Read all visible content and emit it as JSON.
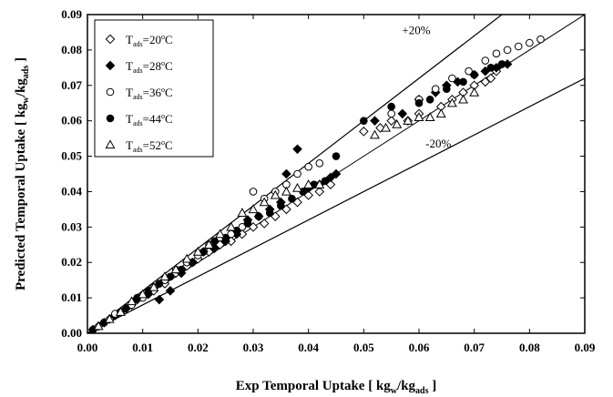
{
  "chart_data": {
    "type": "scatter",
    "xlabel": {
      "main": "Exp Temporal Uptake [ kg",
      "sub1": "w",
      "mid": "/kg",
      "sub2": "ads",
      "end": " ]"
    },
    "ylabel": {
      "main": "Predicted Temporal Uptake [ kg",
      "sub1": "w",
      "mid": "/kg",
      "sub2": "ads",
      "end": " ]"
    },
    "xlim": [
      0,
      0.09
    ],
    "ylim": [
      0,
      0.09
    ],
    "x_ticks": [
      "0.00",
      "0.01",
      "0.02",
      "0.03",
      "0.04",
      "0.05",
      "0.06",
      "0.07",
      "0.08",
      "0.09"
    ],
    "y_ticks": [
      "0.00",
      "0.01",
      "0.02",
      "0.03",
      "0.04",
      "0.05",
      "0.06",
      "0.07",
      "0.08",
      "0.09"
    ],
    "grid": false,
    "legend_position": "top-left",
    "reference_lines": [
      {
        "label": "+20%",
        "slope": 1.2
      },
      {
        "label": "-20%",
        "slope": 0.8
      }
    ],
    "series": [
      {
        "legend": {
          "prefix": "T",
          "sub": "ads",
          "value": "=20",
          "deg": "o",
          "unit": "C"
        },
        "marker": "diamond-open",
        "points": [
          [
            0.001,
            0.001
          ],
          [
            0.002,
            0.002
          ],
          [
            0.004,
            0.004
          ],
          [
            0.006,
            0.006
          ],
          [
            0.008,
            0.008
          ],
          [
            0.01,
            0.0105
          ],
          [
            0.012,
            0.012
          ],
          [
            0.014,
            0.014
          ],
          [
            0.016,
            0.017
          ],
          [
            0.018,
            0.019
          ],
          [
            0.02,
            0.021
          ],
          [
            0.022,
            0.023
          ],
          [
            0.024,
            0.025
          ],
          [
            0.026,
            0.026
          ],
          [
            0.028,
            0.028
          ],
          [
            0.03,
            0.03
          ],
          [
            0.032,
            0.031
          ],
          [
            0.034,
            0.033
          ],
          [
            0.036,
            0.035
          ],
          [
            0.038,
            0.037
          ],
          [
            0.04,
            0.039
          ],
          [
            0.042,
            0.04
          ],
          [
            0.044,
            0.042
          ],
          [
            0.05,
            0.057
          ],
          [
            0.053,
            0.058
          ],
          [
            0.055,
            0.06
          ],
          [
            0.058,
            0.06
          ],
          [
            0.06,
            0.062
          ],
          [
            0.064,
            0.064
          ],
          [
            0.066,
            0.066
          ],
          [
            0.068,
            0.068
          ],
          [
            0.07,
            0.07
          ],
          [
            0.072,
            0.071
          ],
          [
            0.073,
            0.072
          ],
          [
            0.074,
            0.074
          ]
        ]
      },
      {
        "legend": {
          "prefix": "T",
          "sub": "ads",
          "value": "=28",
          "deg": "o",
          "unit": "C"
        },
        "marker": "diamond-filled",
        "points": [
          [
            0.001,
            0.001
          ],
          [
            0.003,
            0.003
          ],
          [
            0.005,
            0.005
          ],
          [
            0.007,
            0.007
          ],
          [
            0.009,
            0.0095
          ],
          [
            0.011,
            0.011
          ],
          [
            0.013,
            0.0095
          ],
          [
            0.015,
            0.012
          ],
          [
            0.017,
            0.017
          ],
          [
            0.019,
            0.02
          ],
          [
            0.021,
            0.023
          ],
          [
            0.023,
            0.024
          ],
          [
            0.025,
            0.026
          ],
          [
            0.027,
            0.028
          ],
          [
            0.029,
            0.032
          ],
          [
            0.031,
            0.033
          ],
          [
            0.033,
            0.035
          ],
          [
            0.035,
            0.037
          ],
          [
            0.036,
            0.045
          ],
          [
            0.038,
            0.052
          ],
          [
            0.04,
            0.041
          ],
          [
            0.042,
            0.042
          ],
          [
            0.044,
            0.044
          ],
          [
            0.045,
            0.045
          ],
          [
            0.052,
            0.06
          ],
          [
            0.057,
            0.062
          ],
          [
            0.06,
            0.066
          ],
          [
            0.063,
            0.068
          ],
          [
            0.065,
            0.07
          ],
          [
            0.067,
            0.071
          ],
          [
            0.07,
            0.073
          ],
          [
            0.072,
            0.074
          ],
          [
            0.074,
            0.075
          ],
          [
            0.076,
            0.076
          ]
        ]
      },
      {
        "legend": {
          "prefix": "T",
          "sub": "ads",
          "value": "=36",
          "deg": "o",
          "unit": "C"
        },
        "marker": "circle-open",
        "points": [
          [
            0.001,
            0.001
          ],
          [
            0.003,
            0.003
          ],
          [
            0.005,
            0.0055
          ],
          [
            0.008,
            0.008
          ],
          [
            0.01,
            0.01
          ],
          [
            0.012,
            0.013
          ],
          [
            0.014,
            0.015
          ],
          [
            0.016,
            0.018
          ],
          [
            0.018,
            0.02
          ],
          [
            0.02,
            0.022
          ],
          [
            0.022,
            0.025
          ],
          [
            0.024,
            0.027
          ],
          [
            0.026,
            0.028
          ],
          [
            0.028,
            0.03
          ],
          [
            0.03,
            0.04
          ],
          [
            0.032,
            0.038
          ],
          [
            0.034,
            0.04
          ],
          [
            0.036,
            0.042
          ],
          [
            0.038,
            0.045
          ],
          [
            0.04,
            0.047
          ],
          [
            0.042,
            0.048
          ],
          [
            0.055,
            0.062
          ],
          [
            0.06,
            0.066
          ],
          [
            0.063,
            0.069
          ],
          [
            0.066,
            0.072
          ],
          [
            0.069,
            0.074
          ],
          [
            0.072,
            0.077
          ],
          [
            0.074,
            0.079
          ],
          [
            0.076,
            0.08
          ],
          [
            0.078,
            0.081
          ],
          [
            0.08,
            0.082
          ],
          [
            0.082,
            0.083
          ]
        ]
      },
      {
        "legend": {
          "prefix": "T",
          "sub": "ads",
          "value": "=44",
          "deg": "o",
          "unit": "C"
        },
        "marker": "circle-filled",
        "points": [
          [
            0.001,
            0.001
          ],
          [
            0.003,
            0.003
          ],
          [
            0.006,
            0.006
          ],
          [
            0.009,
            0.01
          ],
          [
            0.011,
            0.012
          ],
          [
            0.013,
            0.014
          ],
          [
            0.015,
            0.016
          ],
          [
            0.017,
            0.018
          ],
          [
            0.019,
            0.02
          ],
          [
            0.021,
            0.023
          ],
          [
            0.023,
            0.026
          ],
          [
            0.025,
            0.027
          ],
          [
            0.027,
            0.029
          ],
          [
            0.029,
            0.031
          ],
          [
            0.031,
            0.033
          ],
          [
            0.033,
            0.034
          ],
          [
            0.035,
            0.036
          ],
          [
            0.037,
            0.038
          ],
          [
            0.039,
            0.04
          ],
          [
            0.041,
            0.042
          ],
          [
            0.043,
            0.043
          ],
          [
            0.045,
            0.05
          ],
          [
            0.05,
            0.06
          ],
          [
            0.055,
            0.064
          ],
          [
            0.06,
            0.065
          ],
          [
            0.062,
            0.066
          ],
          [
            0.065,
            0.069
          ],
          [
            0.068,
            0.071
          ],
          [
            0.07,
            0.073
          ],
          [
            0.073,
            0.075
          ],
          [
            0.075,
            0.076
          ]
        ]
      },
      {
        "legend": {
          "prefix": "T",
          "sub": "ads",
          "value": "=52",
          "deg": "o",
          "unit": "C"
        },
        "marker": "triangle-open",
        "points": [
          [
            0.002,
            0.002
          ],
          [
            0.004,
            0.004
          ],
          [
            0.006,
            0.006
          ],
          [
            0.008,
            0.009
          ],
          [
            0.01,
            0.011
          ],
          [
            0.012,
            0.013
          ],
          [
            0.014,
            0.016
          ],
          [
            0.016,
            0.018
          ],
          [
            0.018,
            0.021
          ],
          [
            0.02,
            0.023
          ],
          [
            0.022,
            0.025
          ],
          [
            0.024,
            0.028
          ],
          [
            0.026,
            0.03
          ],
          [
            0.028,
            0.034
          ],
          [
            0.03,
            0.035
          ],
          [
            0.032,
            0.037
          ],
          [
            0.034,
            0.039
          ],
          [
            0.036,
            0.04
          ],
          [
            0.038,
            0.041
          ],
          [
            0.04,
            0.042
          ],
          [
            0.042,
            0.042
          ],
          [
            0.052,
            0.056
          ],
          [
            0.054,
            0.058
          ],
          [
            0.056,
            0.059
          ],
          [
            0.058,
            0.06
          ],
          [
            0.06,
            0.061
          ],
          [
            0.062,
            0.061
          ],
          [
            0.064,
            0.062
          ],
          [
            0.066,
            0.065
          ],
          [
            0.068,
            0.066
          ],
          [
            0.07,
            0.068
          ]
        ]
      }
    ]
  }
}
